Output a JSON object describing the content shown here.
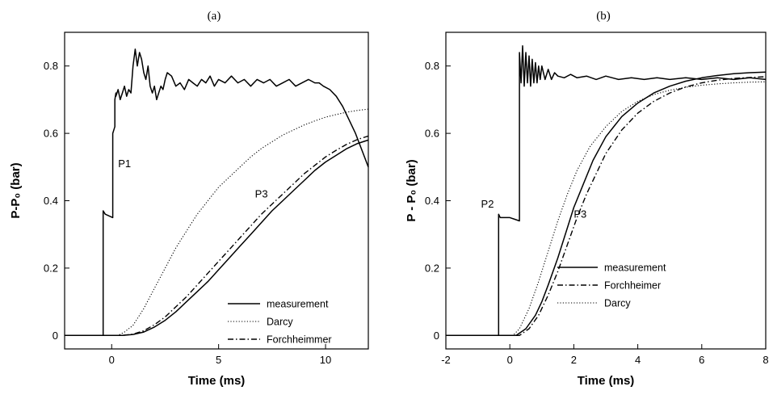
{
  "chart_data": [
    {
      "type": "line",
      "panel_label": "(a)",
      "xlabel": "Time (ms)",
      "ylabel": "P-P₀ (bar)",
      "xlim": [
        -2.2,
        12
      ],
      "ylim": [
        -0.04,
        0.9
      ],
      "xticks": [
        0,
        5,
        10
      ],
      "xtick_labels": [
        "0",
        "5",
        "10"
      ],
      "yticks": [
        0,
        0.2,
        0.4,
        0.6,
        0.8
      ],
      "ytick_labels": [
        "0",
        "0.2",
        "0.4",
        "0.6",
        "0.8"
      ],
      "grid": false,
      "legend_position": "bottom-right",
      "annotations": [
        {
          "text": "P1",
          "x": 0.3,
          "y": 0.5
        },
        {
          "text": "P3",
          "x": 6.7,
          "y": 0.41
        }
      ],
      "series": [
        {
          "name": "",
          "style": "solid",
          "role": "P1",
          "x": [
            -2.2,
            -0.4,
            -0.4,
            -0.3,
            0.05,
            0.05,
            0.15,
            0.15,
            0.2,
            0.2,
            0.3,
            0.4,
            0.5,
            0.6,
            0.7,
            0.8,
            0.9,
            1.0,
            1.1,
            1.2,
            1.3,
            1.4,
            1.5,
            1.6,
            1.7,
            1.8,
            1.9,
            2.0,
            2.1,
            2.2,
            2.3,
            2.4,
            2.5,
            2.6,
            2.8,
            3.0,
            3.2,
            3.4,
            3.6,
            3.8,
            4.0,
            4.2,
            4.4,
            4.6,
            4.8,
            5.0,
            5.3,
            5.6,
            5.9,
            6.2,
            6.5,
            6.8,
            7.1,
            7.4,
            7.7,
            8.0,
            8.3,
            8.6,
            8.9,
            9.2,
            9.5,
            9.7,
            9.9,
            10.2,
            10.5,
            10.8,
            11.1,
            11.4,
            11.7,
            12.0
          ],
          "y": [
            0,
            0,
            0.37,
            0.36,
            0.35,
            0.6,
            0.62,
            0.7,
            0.72,
            0.71,
            0.73,
            0.7,
            0.72,
            0.74,
            0.71,
            0.73,
            0.72,
            0.8,
            0.85,
            0.8,
            0.84,
            0.82,
            0.78,
            0.76,
            0.8,
            0.74,
            0.72,
            0.74,
            0.7,
            0.72,
            0.74,
            0.73,
            0.76,
            0.78,
            0.77,
            0.74,
            0.75,
            0.73,
            0.76,
            0.75,
            0.74,
            0.76,
            0.75,
            0.77,
            0.74,
            0.76,
            0.75,
            0.77,
            0.75,
            0.76,
            0.74,
            0.76,
            0.75,
            0.76,
            0.74,
            0.75,
            0.76,
            0.74,
            0.75,
            0.76,
            0.75,
            0.75,
            0.74,
            0.73,
            0.71,
            0.68,
            0.64,
            0.6,
            0.55,
            0.5
          ]
        },
        {
          "name": "measurement",
          "style": "solid",
          "x": [
            -2.2,
            0.5,
            1.0,
            1.5,
            2.0,
            2.5,
            3.0,
            3.5,
            4.0,
            4.5,
            5.0,
            5.5,
            6.0,
            6.5,
            7.0,
            7.5,
            8.0,
            8.5,
            9.0,
            9.5,
            10.0,
            10.5,
            11.0,
            11.5,
            12.0
          ],
          "y": [
            0,
            0,
            0.003,
            0.01,
            0.025,
            0.045,
            0.07,
            0.1,
            0.13,
            0.16,
            0.195,
            0.23,
            0.265,
            0.3,
            0.335,
            0.37,
            0.4,
            0.43,
            0.46,
            0.49,
            0.515,
            0.535,
            0.555,
            0.57,
            0.58
          ]
        },
        {
          "name": "Darcy",
          "style": "dotted",
          "x": [
            -2.2,
            0.3,
            0.6,
            1.0,
            1.5,
            2.0,
            2.5,
            3.0,
            3.5,
            4.0,
            4.5,
            5.0,
            5.5,
            6.0,
            6.5,
            7.0,
            7.5,
            8.0,
            8.5,
            9.0,
            9.5,
            10.0,
            10.5,
            11.0,
            11.5,
            12.0
          ],
          "y": [
            0,
            0,
            0.01,
            0.03,
            0.08,
            0.14,
            0.2,
            0.26,
            0.31,
            0.36,
            0.4,
            0.44,
            0.47,
            0.5,
            0.53,
            0.555,
            0.575,
            0.595,
            0.61,
            0.625,
            0.637,
            0.648,
            0.656,
            0.663,
            0.668,
            0.672
          ]
        },
        {
          "name": "Forchheimmer",
          "style": "dashdot",
          "x": [
            -2.2,
            0.5,
            1.0,
            1.5,
            2.0,
            2.5,
            3.0,
            3.5,
            4.0,
            4.5,
            5.0,
            5.5,
            6.0,
            6.5,
            7.0,
            7.5,
            8.0,
            8.5,
            9.0,
            9.5,
            10.0,
            10.5,
            11.0,
            11.5,
            12.0
          ],
          "y": [
            0,
            0,
            0.004,
            0.014,
            0.032,
            0.055,
            0.085,
            0.115,
            0.15,
            0.185,
            0.22,
            0.255,
            0.29,
            0.325,
            0.36,
            0.39,
            0.42,
            0.45,
            0.48,
            0.505,
            0.53,
            0.55,
            0.568,
            0.582,
            0.592
          ]
        }
      ]
    },
    {
      "type": "line",
      "panel_label": "(b)",
      "xlabel": "Time (ms)",
      "ylabel": "P - P₀ (bar)",
      "xlim": [
        -2,
        8
      ],
      "ylim": [
        -0.04,
        0.9
      ],
      "xticks": [
        -2,
        0,
        2,
        4,
        6,
        8
      ],
      "xtick_labels": [
        "-2",
        "0",
        "2",
        "4",
        "6",
        "8"
      ],
      "yticks": [
        0,
        0.2,
        0.4,
        0.6,
        0.8
      ],
      "ytick_labels": [
        "0",
        "0.2",
        "0.4",
        "0.6",
        "0.8"
      ],
      "grid": false,
      "legend_position": "bottom-right",
      "annotations": [
        {
          "text": "P2",
          "x": -0.9,
          "y": 0.38
        },
        {
          "text": "P3",
          "x": 2.0,
          "y": 0.35
        }
      ],
      "series": [
        {
          "name": "",
          "style": "solid",
          "role": "P2",
          "x": [
            -2,
            -0.35,
            -0.35,
            -0.3,
            0.0,
            0.3,
            0.3,
            0.35,
            0.4,
            0.45,
            0.5,
            0.55,
            0.6,
            0.65,
            0.7,
            0.75,
            0.8,
            0.85,
            0.9,
            0.95,
            1.0,
            1.1,
            1.2,
            1.3,
            1.4,
            1.5,
            1.7,
            1.9,
            2.1,
            2.4,
            2.7,
            3.0,
            3.4,
            3.8,
            4.2,
            4.6,
            5.0,
            5.5,
            6.0,
            6.5,
            7.0,
            7.5,
            8.0
          ],
          "y": [
            0,
            0,
            0.36,
            0.35,
            0.35,
            0.34,
            0.84,
            0.75,
            0.86,
            0.74,
            0.84,
            0.75,
            0.83,
            0.74,
            0.82,
            0.75,
            0.81,
            0.75,
            0.8,
            0.76,
            0.8,
            0.76,
            0.79,
            0.76,
            0.78,
            0.77,
            0.765,
            0.775,
            0.765,
            0.77,
            0.76,
            0.77,
            0.76,
            0.765,
            0.76,
            0.765,
            0.76,
            0.765,
            0.76,
            0.765,
            0.76,
            0.765,
            0.76
          ]
        },
        {
          "name": "measurement",
          "style": "solid",
          "x": [
            -2,
            0.2,
            0.5,
            0.8,
            1.0,
            1.2,
            1.5,
            1.8,
            2.0,
            2.3,
            2.6,
            3.0,
            3.5,
            4.0,
            4.5,
            5.0,
            5.5,
            6.0,
            6.5,
            7.0,
            7.5,
            8.0
          ],
          "y": [
            0,
            0,
            0.02,
            0.06,
            0.1,
            0.15,
            0.23,
            0.32,
            0.38,
            0.45,
            0.52,
            0.59,
            0.65,
            0.69,
            0.72,
            0.74,
            0.755,
            0.765,
            0.772,
            0.777,
            0.78,
            0.782
          ]
        },
        {
          "name": "Forchheimer",
          "style": "dashdot",
          "x": [
            -2,
            0.3,
            0.6,
            0.9,
            1.2,
            1.5,
            1.8,
            2.1,
            2.4,
            2.7,
            3.0,
            3.5,
            4.0,
            4.5,
            5.0,
            5.5,
            6.0,
            6.5,
            7.0,
            7.5,
            8.0
          ],
          "y": [
            0,
            0,
            0.02,
            0.06,
            0.12,
            0.19,
            0.27,
            0.35,
            0.42,
            0.48,
            0.54,
            0.61,
            0.66,
            0.695,
            0.72,
            0.738,
            0.75,
            0.758,
            0.763,
            0.766,
            0.768
          ]
        },
        {
          "name": "Darcy",
          "style": "dotted",
          "x": [
            -2,
            0.1,
            0.3,
            0.6,
            0.9,
            1.2,
            1.5,
            1.8,
            2.1,
            2.5,
            3.0,
            3.5,
            4.0,
            4.5,
            5.0,
            5.5,
            6.0,
            6.5,
            7.0,
            7.5,
            8.0
          ],
          "y": [
            0,
            0,
            0.02,
            0.08,
            0.16,
            0.25,
            0.34,
            0.42,
            0.49,
            0.56,
            0.62,
            0.665,
            0.695,
            0.715,
            0.728,
            0.737,
            0.743,
            0.747,
            0.75,
            0.752,
            0.753
          ]
        }
      ]
    }
  ]
}
